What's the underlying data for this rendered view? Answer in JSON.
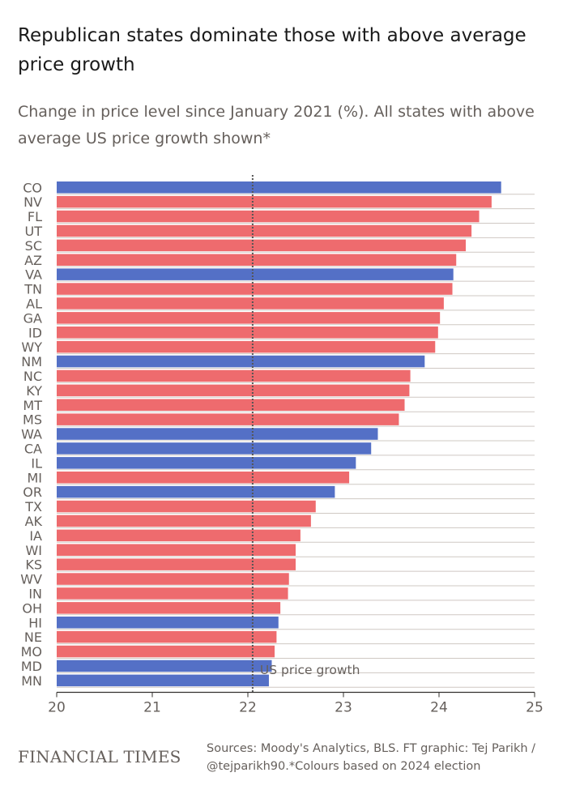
{
  "title": "Republican states dominate those with above average price growth",
  "subtitle": "Change in price level since January 2021 (%). All states with above average US price growth shown*",
  "footer": {
    "logo": "FINANCIAL TIMES",
    "source_line1": "Sources: Moody's Analytics, BLS. FT graphic: Tej Parikh /",
    "source_line2": "@tejparikh90.*Colours based on 2024 election"
  },
  "colors": {
    "democrat": "#5470c6",
    "republican": "#ee6b6e",
    "grid": "#cfc8c3",
    "text": "#66605c",
    "reference": "#555555"
  },
  "chart_data": {
    "type": "bar",
    "orientation": "horizontal",
    "title": "Republican states dominate those with above average price growth",
    "xlabel": "",
    "ylabel": "",
    "xlim": [
      20,
      25
    ],
    "xticks": [
      20,
      21,
      22,
      23,
      24,
      25
    ],
    "reference_line": {
      "value": 22.05,
      "label": "US price growth"
    },
    "categories": [
      "CO",
      "NV",
      "FL",
      "UT",
      "SC",
      "AZ",
      "VA",
      "TN",
      "AL",
      "GA",
      "ID",
      "WY",
      "NM",
      "NC",
      "KY",
      "MT",
      "MS",
      "WA",
      "CA",
      "IL",
      "MI",
      "OR",
      "TX",
      "AK",
      "IA",
      "WI",
      "KS",
      "WV",
      "IN",
      "OH",
      "HI",
      "NE",
      "MO",
      "MD",
      "MN"
    ],
    "values": [
      24.65,
      24.55,
      24.42,
      24.34,
      24.28,
      24.18,
      24.15,
      24.14,
      24.05,
      24.01,
      23.99,
      23.96,
      23.85,
      23.7,
      23.69,
      23.64,
      23.58,
      23.36,
      23.29,
      23.13,
      23.06,
      22.91,
      22.71,
      22.66,
      22.55,
      22.5,
      22.5,
      22.43,
      22.42,
      22.34,
      22.32,
      22.3,
      22.28,
      22.25,
      22.22
    ],
    "party": [
      "D",
      "R",
      "R",
      "R",
      "R",
      "R",
      "D",
      "R",
      "R",
      "R",
      "R",
      "R",
      "D",
      "R",
      "R",
      "R",
      "R",
      "D",
      "D",
      "D",
      "R",
      "D",
      "R",
      "R",
      "R",
      "R",
      "R",
      "R",
      "R",
      "R",
      "D",
      "R",
      "R",
      "D",
      "D"
    ]
  }
}
